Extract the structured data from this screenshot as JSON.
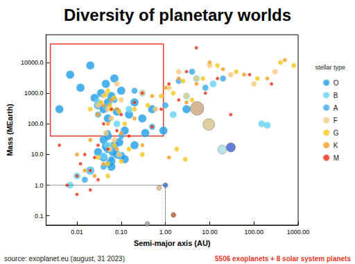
{
  "chart_data": {
    "type": "scatter",
    "title": "Diversity of planetary worlds",
    "x_label": "Semi-major axis (AU)",
    "y_label": "Mass (MEarth)",
    "legend_title": "stellar type",
    "source": "source: exoplanet.eu (august, 31 2023)",
    "note": "5506 exoplanets + 8 solar system planets",
    "log": true,
    "grid": false,
    "legend": "right",
    "xlim": [
      0.002,
      1000
    ],
    "ylim": [
      0.05,
      80000
    ],
    "xticks": [
      0.01,
      {
        "value": 0.1,
        "label": "0.10"
      },
      {
        "value": 1,
        "label": "1.00"
      },
      {
        "value": 10,
        "label": "10.00"
      },
      {
        "value": 100,
        "label": "100.00"
      },
      {
        "value": 1000,
        "label": "1000.00"
      }
    ],
    "yticks": [
      0.1,
      {
        "value": 1,
        "label": "1.0"
      },
      {
        "value": 10,
        "label": "10.0"
      },
      {
        "value": 100,
        "label": "100.0"
      },
      {
        "value": 1000,
        "label": "1000.0"
      },
      {
        "value": 10000,
        "label": "10000.0"
      }
    ],
    "highlight_box": {
      "xlim": [
        0.0025,
        0.9
      ],
      "ylim": [
        40,
        40000
      ],
      "color": "#e8392c"
    },
    "reference": {
      "x": 1,
      "y": 1
    },
    "series": [
      {
        "name": "O",
        "color": "#1f9de6",
        "x": [
          0.004,
          0.007,
          0.012,
          0.02,
          0.025,
          0.03,
          0.035,
          0.04,
          0.045,
          0.05,
          0.05,
          0.06,
          0.07,
          0.08,
          0.1,
          0.12,
          0.15,
          0.2,
          0.3,
          0.5,
          0.03,
          0.04,
          0.05,
          0.06,
          0.07,
          0.08,
          0.09,
          0.1,
          0.12,
          0.04,
          0.05,
          0.06,
          0.045,
          0.055,
          0.065,
          0.2,
          0.35,
          0.9,
          3,
          0.02
        ],
        "values": [
          300,
          4000,
          1500,
          8000,
          700,
          400,
          1000,
          300,
          2000,
          500,
          150,
          800,
          3000,
          250,
          1200,
          60,
          200,
          500,
          150,
          300,
          12,
          8,
          15,
          6,
          20,
          10,
          25,
          9,
          7,
          30,
          40,
          4,
          18,
          5,
          12,
          20,
          50,
          60,
          300,
          3
        ]
      },
      {
        "name": "B",
        "color": "#64d2f2",
        "x": [
          0.01,
          0.02,
          0.03,
          0.05,
          0.08,
          0.15,
          0.3,
          1.5,
          3,
          5,
          12,
          150,
          200,
          0.007,
          0.04
        ],
        "values": [
          2,
          3,
          500,
          20,
          100,
          300,
          1000,
          200,
          800,
          3000,
          2000,
          100,
          90,
          1,
          9
        ]
      },
      {
        "name": "A",
        "color": "#3aa7e6",
        "x": [
          0.015,
          0.03,
          0.05,
          0.07,
          0.1,
          0.2,
          0.5,
          1,
          2,
          4,
          8,
          20,
          0.04,
          0.06
        ],
        "values": [
          1.5,
          200,
          50,
          600,
          40,
          1200,
          80,
          400,
          2500,
          5000,
          1500,
          3000,
          4,
          7
        ]
      },
      {
        "name": "F",
        "color": "#f5c87a",
        "x": [
          0.03,
          0.04,
          0.05,
          0.06,
          0.08,
          0.1,
          0.3,
          0.6,
          1.2,
          2,
          3,
          5,
          10,
          30,
          100,
          300,
          0.045,
          0.055,
          0.07,
          0.09
        ],
        "values": [
          400,
          800,
          300,
          150,
          2000,
          600,
          1000,
          300,
          1500,
          5000,
          800,
          3000,
          8000,
          4000,
          2000,
          5000,
          50,
          15,
          30,
          10
        ]
      },
      {
        "name": "G",
        "color": "#f5c518",
        "x": [
          0.02,
          0.035,
          0.045,
          0.05,
          0.055,
          0.06,
          0.07,
          0.09,
          0.12,
          0.2,
          0.4,
          0.8,
          1.5,
          2.5,
          4,
          7,
          15,
          40,
          120,
          400,
          800,
          0.03,
          0.05,
          0.07,
          0.1,
          0.15,
          0.3,
          1.8,
          2.8,
          0.05
        ],
        "values": [
          300,
          500,
          900,
          1200,
          400,
          300,
          700,
          250,
          100,
          300,
          400,
          800,
          1000,
          2500,
          600,
          3000,
          8000,
          5000,
          3000,
          10000,
          8000,
          8,
          5,
          20,
          6,
          15,
          10,
          15,
          7,
          2
        ]
      },
      {
        "name": "K",
        "color": "#f39c1e",
        "x": [
          0.01,
          0.02,
          0.03,
          0.04,
          0.05,
          0.06,
          0.08,
          0.1,
          0.2,
          0.5,
          1,
          2,
          3,
          5,
          10,
          20,
          60,
          200,
          500,
          0.015,
          0.025,
          0.04,
          0.08,
          0.3,
          1.2
        ],
        "values": [
          10,
          30,
          200,
          400,
          100,
          600,
          300,
          50,
          150,
          800,
          1500,
          3000,
          500,
          2000,
          10000,
          6000,
          4000,
          3000,
          12000,
          3,
          2,
          5,
          15,
          20,
          8
        ]
      },
      {
        "name": "M",
        "color": "#e8280f",
        "x": [
          0.006,
          0.01,
          0.012,
          0.015,
          0.02,
          0.025,
          0.03,
          0.04,
          0.05,
          0.06,
          0.08,
          0.1,
          0.15,
          0.2,
          0.3,
          0.5,
          0.8,
          1.2,
          2,
          3,
          5,
          8,
          15,
          30,
          80,
          250,
          0.02,
          0.03,
          0.01,
          0.004
        ],
        "values": [
          1,
          2,
          5,
          10,
          3,
          8,
          20,
          100,
          15,
          300,
          60,
          200,
          40,
          500,
          1000,
          80,
          300,
          2000,
          600,
          5000,
          30000,
          1000,
          3000,
          200,
          4000,
          2000,
          0.7,
          1.5,
          0.5,
          20
        ]
      },
      {
        "colors": [
          "#9a9a9a",
          "#d9b77e",
          "#2f6fd0",
          "#b5562b",
          "#c9a27a",
          "#d8c08a",
          "#a8dbe6",
          "#3a5fcd"
        ],
        "x": [
          0.39,
          0.72,
          1,
          1.52,
          5.2,
          9.54,
          19.2,
          30.1
        ],
        "values": [
          0.055,
          0.815,
          1,
          0.107,
          318,
          95,
          14.5,
          17.1
        ]
      }
    ]
  }
}
